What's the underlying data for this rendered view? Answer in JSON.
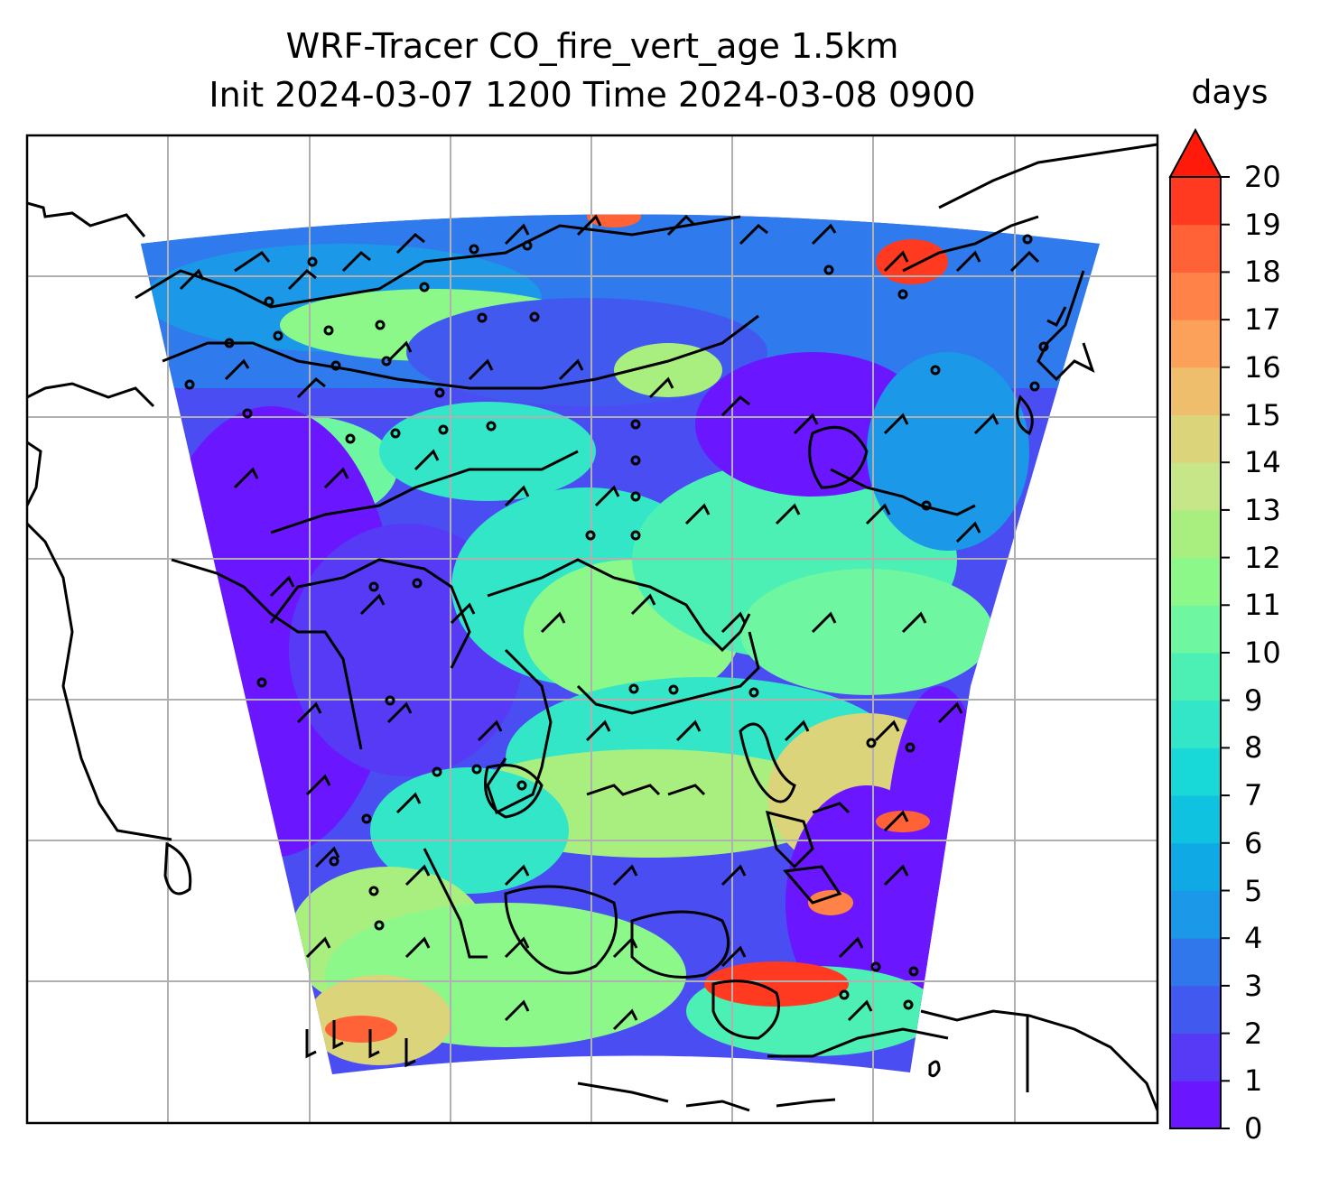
{
  "title": {
    "line1": "WRF-Tracer CO_fire_vert_age 1.5km",
    "line2": "Init 2024-03-07 1200 Time 2024-03-08 0900"
  },
  "colorbar": {
    "unit": "days",
    "min": 0,
    "max": 20,
    "extend": "max",
    "tick_labels": [
      "0",
      "1",
      "2",
      "3",
      "4",
      "5",
      "6",
      "7",
      "8",
      "9",
      "10",
      "11",
      "12",
      "13",
      "14",
      "15",
      "16",
      "17",
      "18",
      "19",
      "20"
    ],
    "colors": [
      "#6a17ff",
      "#573af5",
      "#4259f0",
      "#3077ec",
      "#1b98e8",
      "#0fa9e5",
      "#0ec2e0",
      "#19d8d8",
      "#33e6c8",
      "#4df0b4",
      "#6ef7a0",
      "#8cf88a",
      "#a9ef80",
      "#c6e688",
      "#dbd47a",
      "#efbe6c",
      "#fca15a",
      "#ff8248",
      "#ff6236",
      "#ff3a20",
      "#ff1a0a"
    ]
  },
  "map": {
    "field": "CO_fire_vert_age",
    "level": "1.5km",
    "projection_grid": "lat-lon gridlines",
    "wind_barbs": true,
    "coastlines": true
  }
}
